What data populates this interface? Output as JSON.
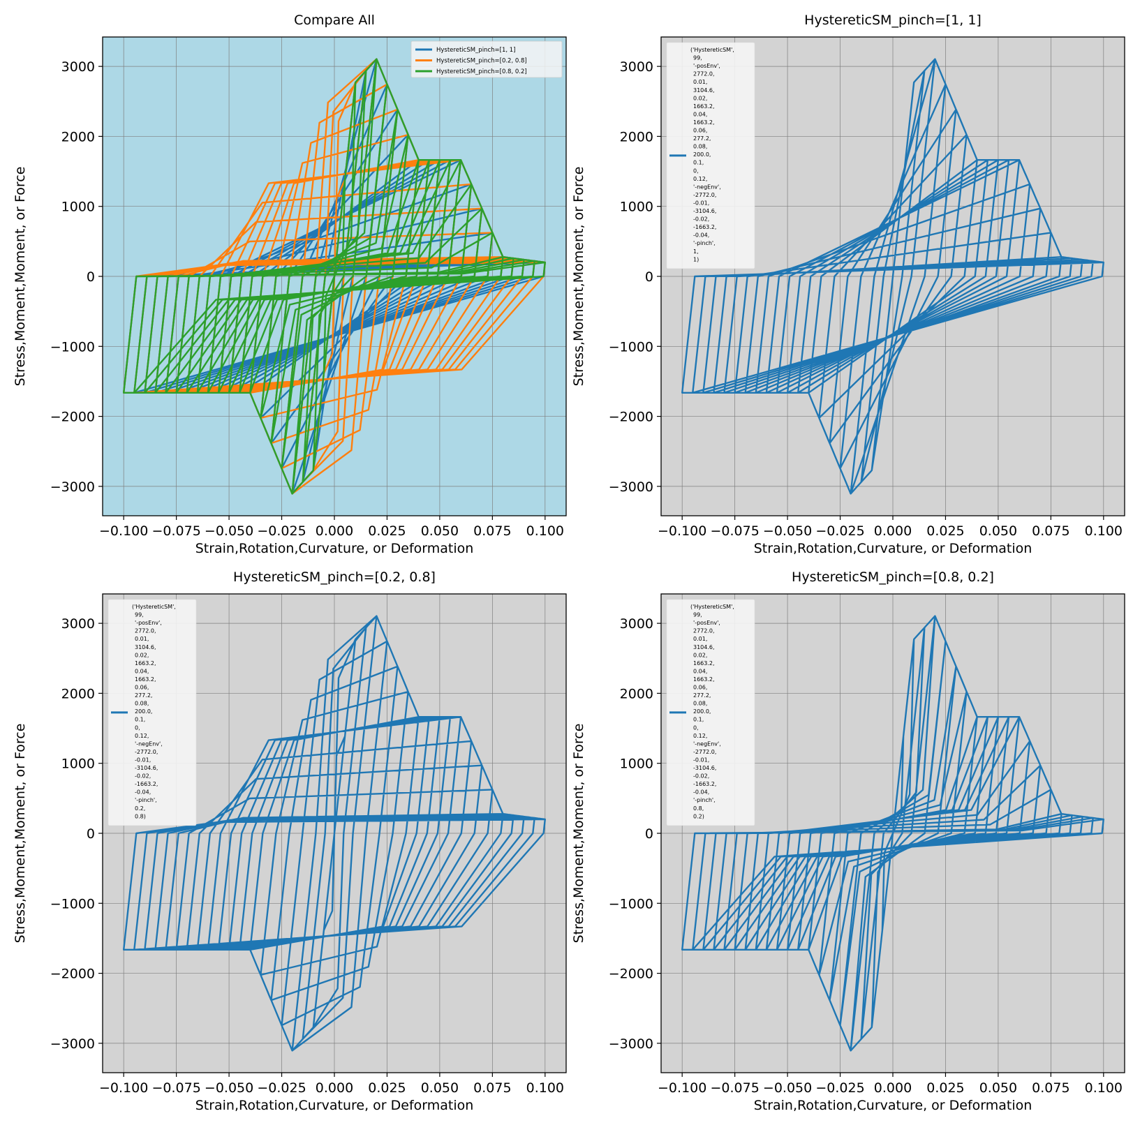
{
  "colors": {
    "blue": "#1f77b4",
    "orange": "#ff7f0e",
    "green": "#2ca02c",
    "compare_bg": "#add8e6",
    "single_bg": "#d3d3d3",
    "legend_bg": "#f5f5f5"
  },
  "material_params_common": [
    "('HystereticSM',",
    "99,",
    "'-posEnv',",
    "2772.0,",
    "0.01,",
    "3104.6,",
    "0.02,",
    "1663.2,",
    "0.04,",
    "1663.2,",
    "0.06,",
    "277.2,",
    "0.08,",
    "200.0,",
    "0.1,",
    "0,",
    "0.12,",
    "'-negEnv',",
    "-2772.0,",
    "-0.01,",
    "-3104.6,",
    "-0.02,",
    "-1663.2,",
    "-0.04,",
    "'-pinch',"
  ],
  "chart_data": [
    {
      "type": "line",
      "title": "Compare All",
      "xlabel": "Strain,Rotation,Curvature, or Deformation",
      "ylabel": "Stress,Moment,Moment, or Force",
      "xlim": [
        -0.11,
        0.11
      ],
      "ylim": [
        -3420,
        3420
      ],
      "xticks": [
        -0.1,
        -0.075,
        -0.05,
        -0.025,
        0.0,
        0.025,
        0.05,
        0.075,
        0.1
      ],
      "xtick_labels": [
        "−0.100",
        "−0.075",
        "−0.050",
        "−0.025",
        "0.000",
        "0.025",
        "0.050",
        "0.075",
        "0.100"
      ],
      "yticks": [
        -3000,
        -2000,
        -1000,
        0,
        1000,
        2000,
        3000
      ],
      "ytick_labels": [
        "−3000",
        "−2000",
        "−1000",
        "0",
        "1000",
        "2000",
        "3000"
      ],
      "grid": true,
      "background": "#add8e6",
      "legend": "top-right",
      "series": [
        {
          "name": "HystereticSM_pinch=[1, 1]",
          "color": "#1f77b4",
          "pinch": [
            1,
            1
          ]
        },
        {
          "name": "HystereticSM_pinch=[0.2, 0.8]",
          "color": "#ff7f0e",
          "pinch": [
            0.2,
            0.8
          ]
        },
        {
          "name": "HystereticSM_pinch=[0.8, 0.2]",
          "color": "#2ca02c",
          "pinch": [
            0.8,
            0.2
          ]
        }
      ],
      "envelope_pos": {
        "x": [
          0,
          0.01,
          0.02,
          0.04,
          0.06,
          0.08,
          0.1
        ],
        "y": [
          0,
          2772.0,
          3104.6,
          1663.2,
          1663.2,
          277.2,
          200.0
        ]
      },
      "envelope_neg": {
        "x": [
          0,
          -0.01,
          -0.02,
          -0.04,
          -0.1
        ],
        "y": [
          0,
          -2772.0,
          -3104.6,
          -1663.2,
          -1663.2
        ]
      }
    },
    {
      "type": "line",
      "title": "HystereticSM_pinch=[1, 1]",
      "xlabel": "Strain,Rotation,Curvature, or Deformation",
      "ylabel": "Stress,Moment,Moment, or Force",
      "xlim": [
        -0.11,
        0.11
      ],
      "ylim": [
        -3420,
        3420
      ],
      "xticks": [
        -0.1,
        -0.075,
        -0.05,
        -0.025,
        0.0,
        0.025,
        0.05,
        0.075,
        0.1
      ],
      "xtick_labels": [
        "−0.100",
        "−0.075",
        "−0.050",
        "−0.025",
        "0.000",
        "0.025",
        "0.050",
        "0.075",
        "0.100"
      ],
      "yticks": [
        -3000,
        -2000,
        -1000,
        0,
        1000,
        2000,
        3000
      ],
      "ytick_labels": [
        "−3000",
        "−2000",
        "−1000",
        "0",
        "1000",
        "2000",
        "3000"
      ],
      "grid": true,
      "background": "#d3d3d3",
      "legend": "top-left",
      "series": [
        {
          "color": "#1f77b4",
          "pinch": [
            1,
            1
          ],
          "legend_lines": [
            "('HystereticSM',",
            "99,",
            "'-posEnv',",
            "2772.0,",
            "0.01,",
            "3104.6,",
            "0.02,",
            "1663.2,",
            "0.04,",
            "1663.2,",
            "0.06,",
            "277.2,",
            "0.08,",
            "200.0,",
            "0.1,",
            "0,",
            "0.12,",
            "'-negEnv',",
            "-2772.0,",
            "-0.01,",
            "-3104.6,",
            "-0.02,",
            "-1663.2,",
            "-0.04,",
            "'-pinch',",
            "1,",
            "1)"
          ]
        }
      ]
    },
    {
      "type": "line",
      "title": "HystereticSM_pinch=[0.2, 0.8]",
      "xlabel": "Strain,Rotation,Curvature, or Deformation",
      "ylabel": "Stress,Moment,Moment, or Force",
      "xlim": [
        -0.11,
        0.11
      ],
      "ylim": [
        -3420,
        3420
      ],
      "xticks": [
        -0.1,
        -0.075,
        -0.05,
        -0.025,
        0.0,
        0.025,
        0.05,
        0.075,
        0.1
      ],
      "xtick_labels": [
        "−0.100",
        "−0.075",
        "−0.050",
        "−0.025",
        "0.000",
        "0.025",
        "0.050",
        "0.075",
        "0.100"
      ],
      "yticks": [
        -3000,
        -2000,
        -1000,
        0,
        1000,
        2000,
        3000
      ],
      "ytick_labels": [
        "−3000",
        "−2000",
        "−1000",
        "0",
        "1000",
        "2000",
        "3000"
      ],
      "grid": true,
      "background": "#d3d3d3",
      "legend": "top-left",
      "series": [
        {
          "color": "#1f77b4",
          "pinch": [
            0.2,
            0.8
          ],
          "legend_lines": [
            "('HystereticSM',",
            "99,",
            "'-posEnv',",
            "2772.0,",
            "0.01,",
            "3104.6,",
            "0.02,",
            "1663.2,",
            "0.04,",
            "1663.2,",
            "0.06,",
            "277.2,",
            "0.08,",
            "200.0,",
            "0.1,",
            "0,",
            "0.12,",
            "'-negEnv',",
            "-2772.0,",
            "-0.01,",
            "-3104.6,",
            "-0.02,",
            "-1663.2,",
            "-0.04,",
            "'-pinch',",
            "0.2,",
            "0.8)"
          ]
        }
      ]
    },
    {
      "type": "line",
      "title": "HystereticSM_pinch=[0.8, 0.2]",
      "xlabel": "Strain,Rotation,Curvature, or Deformation",
      "ylabel": "Stress,Moment,Moment, or Force",
      "xlim": [
        -0.11,
        0.11
      ],
      "ylim": [
        -3420,
        3420
      ],
      "xticks": [
        -0.1,
        -0.075,
        -0.05,
        -0.025,
        0.0,
        0.025,
        0.05,
        0.075,
        0.1
      ],
      "xtick_labels": [
        "−0.100",
        "−0.075",
        "−0.050",
        "−0.025",
        "0.000",
        "0.025",
        "0.050",
        "0.075",
        "0.100"
      ],
      "yticks": [
        -3000,
        -2000,
        -1000,
        0,
        1000,
        2000,
        3000
      ],
      "ytick_labels": [
        "−3000",
        "−2000",
        "−1000",
        "0",
        "1000",
        "2000",
        "3000"
      ],
      "grid": true,
      "background": "#d3d3d3",
      "legend": "top-left",
      "series": [
        {
          "color": "#1f77b4",
          "pinch": [
            0.8,
            0.2
          ],
          "legend_lines": [
            "('HystereticSM',",
            "99,",
            "'-posEnv',",
            "2772.0,",
            "0.01,",
            "3104.6,",
            "0.02,",
            "1663.2,",
            "0.04,",
            "1663.2,",
            "0.06,",
            "277.2,",
            "0.08,",
            "200.0,",
            "0.1,",
            "0,",
            "0.12,",
            "'-negEnv',",
            "-2772.0,",
            "-0.01,",
            "-3104.6,",
            "-0.02,",
            "-1663.2,",
            "-0.04,",
            "'-pinch',",
            "0.8,",
            "0.2)"
          ]
        }
      ]
    }
  ]
}
